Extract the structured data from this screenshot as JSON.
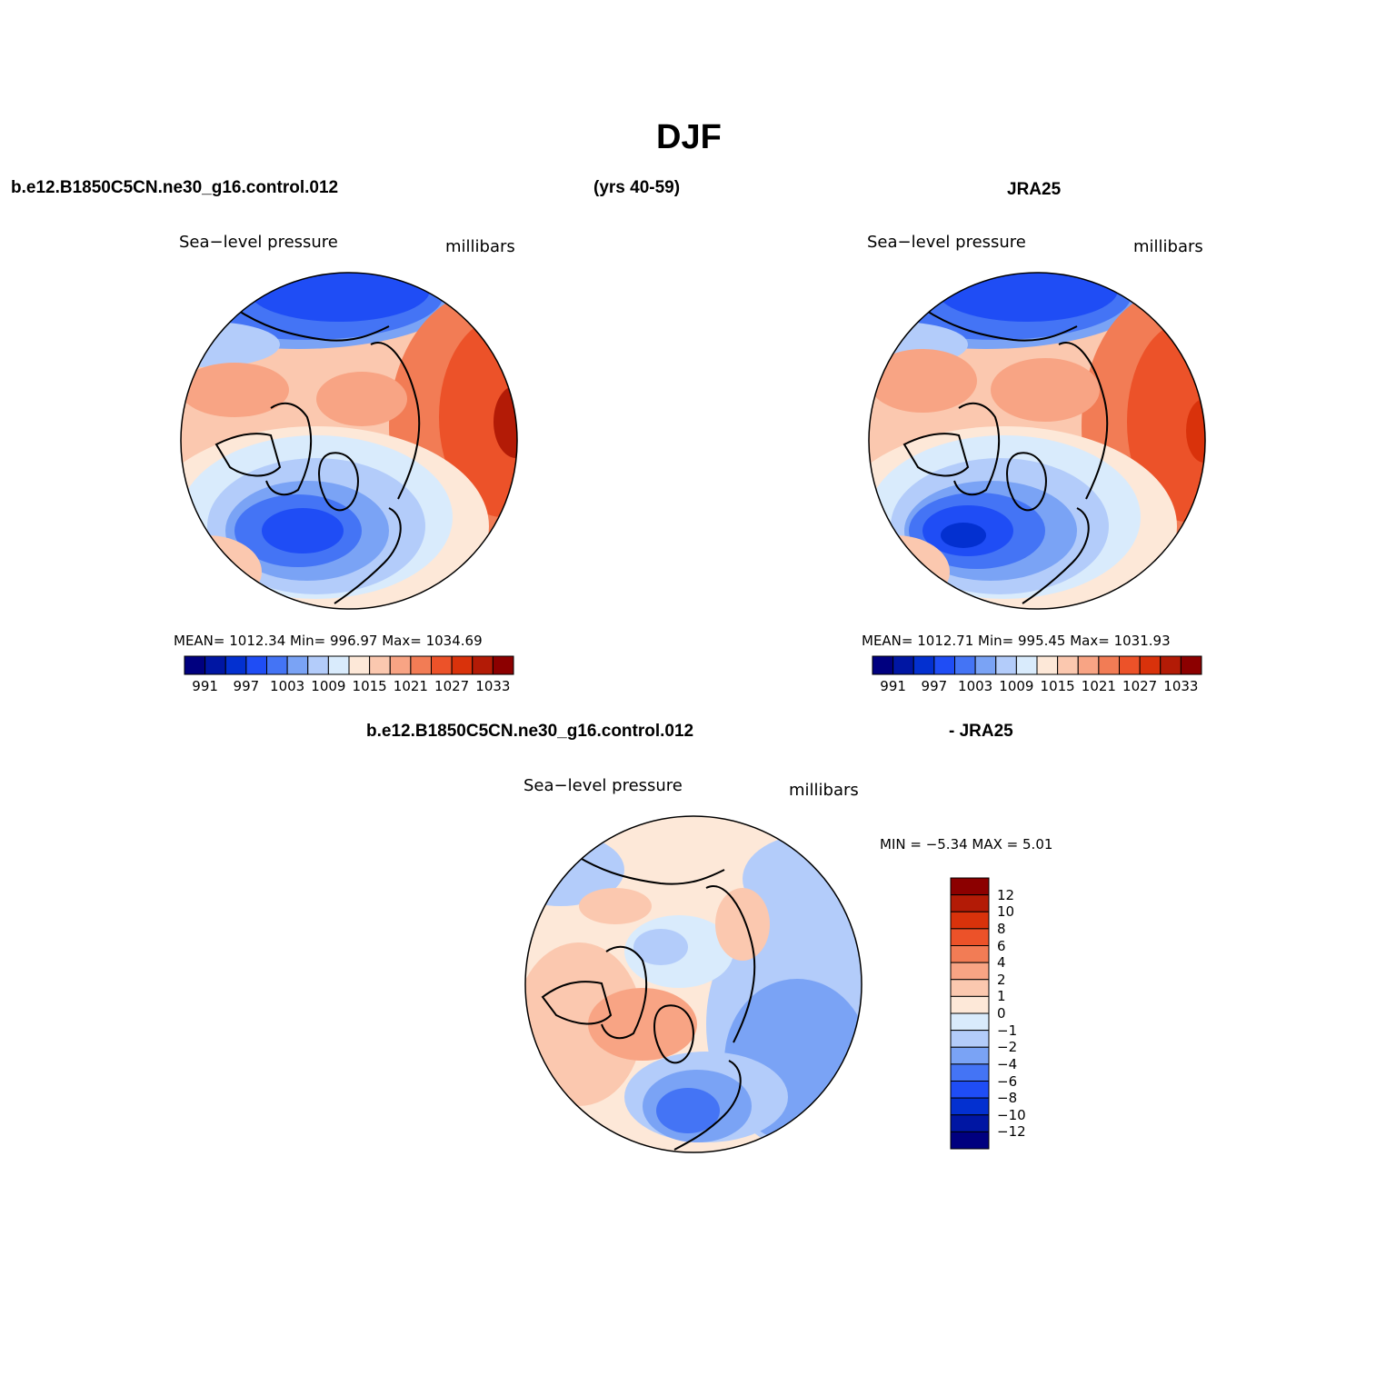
{
  "figure": {
    "title": "DJF",
    "top_left_case": "b.e12.B1850C5CN.ne30_g16.control.012",
    "years": "(yrs 40-59)",
    "top_right_case": "JRA25",
    "diff_case_a": "b.e12.B1850C5CN.ne30_g16.control.012",
    "diff_case_b": "- JRA25"
  },
  "panels": [
    {
      "variable": "Sea−level pressure",
      "units": "millibars",
      "stats": "MEAN=  1012.34   Min=  996.97   Max=  1034.69"
    },
    {
      "variable": "Sea−level pressure",
      "units": "millibars",
      "stats": "MEAN=  1012.71   Min=  995.45   Max=  1031.93"
    },
    {
      "variable": "Sea−level pressure",
      "units": "millibars",
      "stats": "MIN =   −5.34  MAX =    5.01"
    }
  ],
  "abs_colorbar": {
    "colors": [
      "#00007f",
      "#0016a3",
      "#0330d0",
      "#1f4df5",
      "#4474f5",
      "#7aa3f5",
      "#b3ccfa",
      "#d9ebfc",
      "#fde8d8",
      "#fbc8af",
      "#f8a484",
      "#f27c55",
      "#ec5229",
      "#d9320b",
      "#b31b06",
      "#8c0000"
    ],
    "tick_labels": [
      "991",
      "997",
      "1003",
      "1009",
      "1015",
      "1021",
      "1027",
      "1033"
    ]
  },
  "diff_colorbar": {
    "colors": [
      "#8c0000",
      "#b31b06",
      "#d9320b",
      "#ec5229",
      "#f27c55",
      "#f8a484",
      "#fbc8af",
      "#fde8d8",
      "#d9ebfc",
      "#b3ccfa",
      "#7aa3f5",
      "#4474f5",
      "#1f4df5",
      "#0330d0",
      "#0016a3",
      "#00007f"
    ],
    "tick_labels": [
      "12",
      "10",
      "8",
      "6",
      "4",
      "2",
      "1",
      "0",
      "−1",
      "−2",
      "−4",
      "−6",
      "−8",
      "−10",
      "−12"
    ]
  }
}
